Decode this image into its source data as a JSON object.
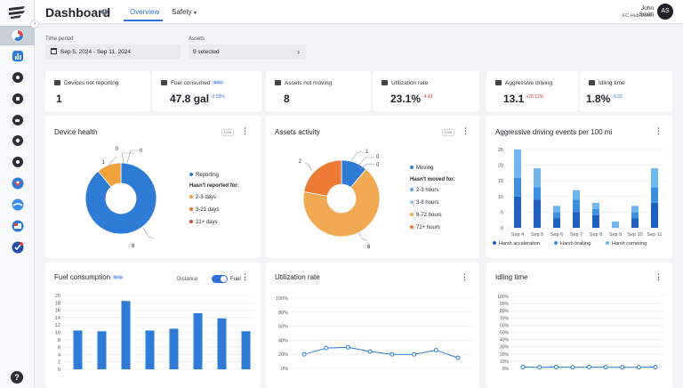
{
  "header": {
    "title": "Dashboard",
    "tabs": [
      {
        "label": "Overview"
      },
      {
        "label": "Safety"
      }
    ],
    "user": {
      "name": "John Smith",
      "org": "FC Hub Demo",
      "initials": "AS"
    }
  },
  "filters": {
    "time_period": {
      "label": "Time period",
      "value": "Sep 5, 2024 - Sep 11, 2024"
    },
    "assets": {
      "label": "Assets",
      "value": "9 selected"
    }
  },
  "kpis": [
    {
      "label": "Devices not reporting",
      "value": "1",
      "icon": "device-off-icon"
    },
    {
      "label": "Fuel consumed",
      "badge": "Beta",
      "value": "47.8 gal",
      "delta": "-0.55%",
      "delta_color": "#2f6fd6",
      "icon": "fuel-icon"
    },
    {
      "label": "Assets not moving",
      "value": "8",
      "icon": "car-icon"
    },
    {
      "label": "Utilization rate",
      "value": "23.1%",
      "delta": "-4.43",
      "delta_color": "#d23c3c",
      "icon": "recycle-icon"
    },
    {
      "label": "Aggressive driving",
      "value": "13.1",
      "delta": "+78.12%",
      "delta_color": "#d23c3c",
      "icon": "speed-icon"
    },
    {
      "label": "Idling time",
      "value": "1.8%",
      "delta": "-0.32",
      "delta_color": "#2f6fd6",
      "icon": "truck-icon"
    }
  ],
  "device_health": {
    "title": "Device health",
    "live": "Live",
    "legend_header": "Hasn't reported for:",
    "chart_data": {
      "type": "pie",
      "categories": [
        "Reporting",
        "2-3 days",
        "3-21 days",
        "21+ days"
      ],
      "values": [
        8,
        1,
        0,
        0
      ],
      "colors": [
        "#2e7bd6",
        "#f0a23b",
        "#ea6f2b",
        "#d94c3d"
      ],
      "style": "donut"
    }
  },
  "assets_activity": {
    "title": "Assets activity",
    "live": "Live",
    "legend_header": "Hasn't moved for:",
    "chart_data": {
      "type": "pie",
      "categories": [
        "Moving",
        "2-3 hours",
        "3-8 hours",
        "8-72 hours",
        "72+ hours"
      ],
      "values": [
        1,
        0,
        0,
        6,
        2
      ],
      "colors": [
        "#2e7bd6",
        "#5ea4e8",
        "#8cc3f0",
        "#f2aa52",
        "#ed7a35"
      ],
      "style": "donut"
    }
  },
  "aggressive_driving": {
    "title": "Aggressive driving events per 100 mi",
    "chart_data": {
      "type": "bar",
      "stacked": true,
      "categories": [
        "Sep 4",
        "Sep 5",
        "Sep 6",
        "Sep 7",
        "Sep 8",
        "Sep 9",
        "Sep 10",
        "Sep 11"
      ],
      "series": [
        {
          "name": "Harsh acceleration",
          "values": [
            10,
            9,
            3,
            5,
            4,
            0,
            3,
            8
          ],
          "color": "#1f5fbf"
        },
        {
          "name": "Harsh braking",
          "values": [
            6,
            4,
            2,
            4,
            2,
            0,
            2,
            5
          ],
          "color": "#3d8fe0"
        },
        {
          "name": "Harsh cornering",
          "values": [
            9,
            6,
            2,
            3,
            2,
            2,
            2,
            6
          ],
          "color": "#6fb5ee"
        }
      ],
      "ylim": [
        0,
        25
      ],
      "yticks": [
        0,
        5,
        10,
        15,
        20,
        25
      ]
    }
  },
  "fuel_consumption": {
    "title": "Fuel consumption",
    "badge": "Beta",
    "toggle_off_label": "Distance",
    "toggle_on_label": "Fuel",
    "chart_data": {
      "type": "bar",
      "values": [
        10.5,
        10.3,
        18.5,
        10.5,
        11,
        15.2,
        13.8,
        10.3
      ],
      "color": "#2e7bd6",
      "ylim": [
        0,
        20
      ],
      "yticks": [
        0,
        2,
        4,
        6,
        8,
        10,
        12,
        14,
        16,
        18,
        20
      ]
    }
  },
  "utilization_rate": {
    "title": "Utilization rate",
    "chart_data": {
      "type": "line",
      "values": [
        20,
        29,
        30,
        24,
        20,
        20,
        26,
        15
      ],
      "color": "#2e7bd6",
      "ylim": [
        0,
        100
      ],
      "yticks": [
        "0%",
        "20%",
        "40%",
        "60%",
        "80%",
        "100%"
      ]
    }
  },
  "idling_time": {
    "title": "Idling time",
    "chart_data": {
      "type": "line",
      "values": [
        1.8,
        1.6,
        1.8,
        1.6,
        1.8,
        1.7,
        1.6,
        1.5,
        1.8
      ],
      "color": "#2e7bd6",
      "ylim": [
        0,
        100
      ],
      "yticks": [
        "0%",
        "10%",
        "20%",
        "30%",
        "40%",
        "50%",
        "60%",
        "70%",
        "80%",
        "90%",
        "100%"
      ]
    }
  }
}
